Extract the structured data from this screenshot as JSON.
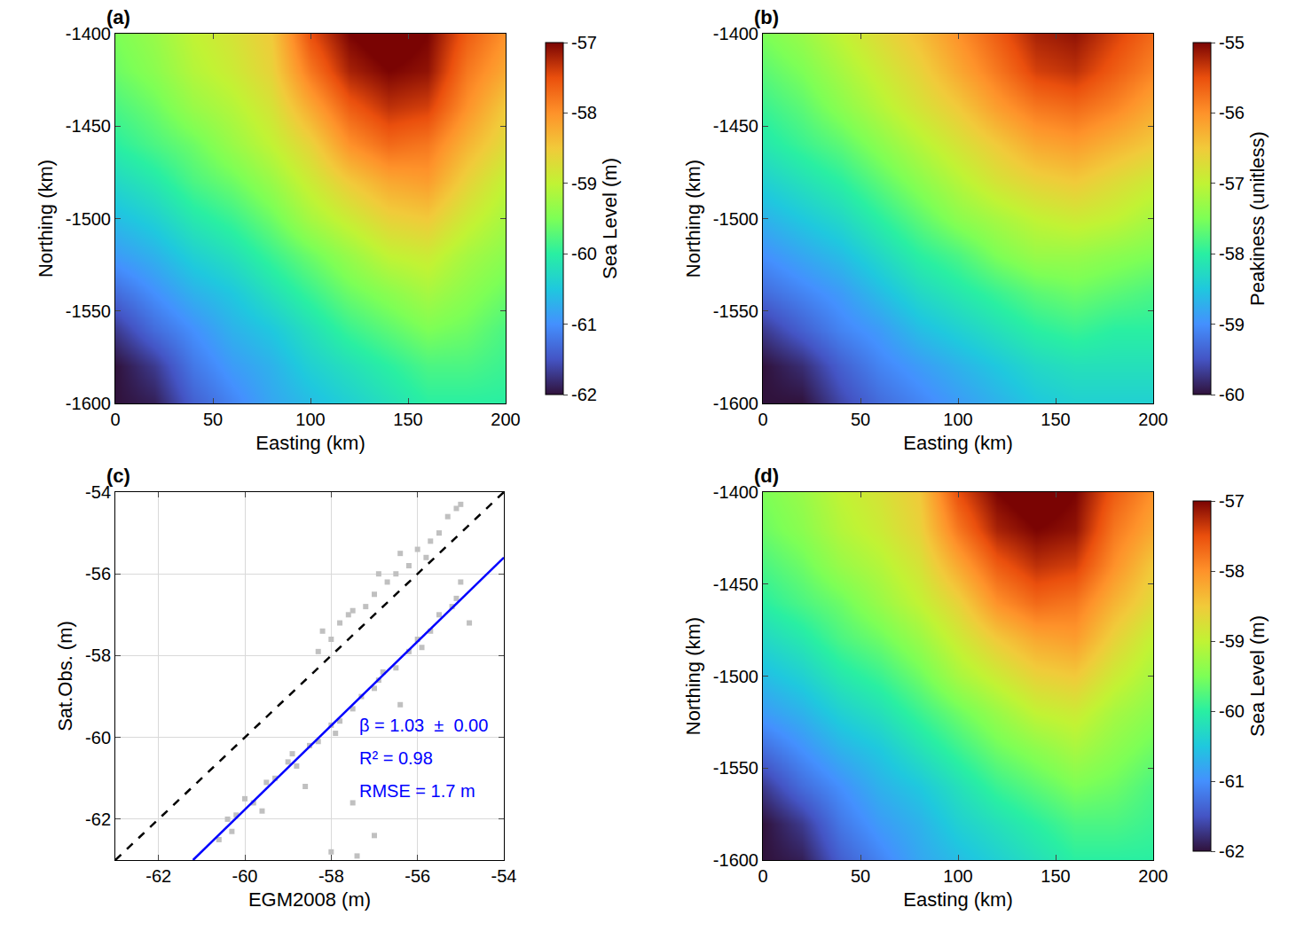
{
  "chart_data": [
    {
      "type": "heatmap",
      "label": "(a)",
      "xlabel": "Easting (km)",
      "ylabel": "Northing (km)",
      "xlim": [
        0,
        200
      ],
      "ylim": [
        -1600,
        -1400
      ],
      "xticks": [
        0,
        50,
        100,
        150,
        200
      ],
      "yticks": [
        -1600,
        -1550,
        -1500,
        -1450,
        -1400
      ],
      "grid": false,
      "x": [
        0,
        20,
        40,
        60,
        80,
        100,
        120,
        140,
        160,
        180,
        200
      ],
      "y": [
        -1600,
        -1580,
        -1560,
        -1540,
        -1520,
        -1500,
        -1480,
        -1460,
        -1440,
        -1420,
        -1400
      ],
      "z": [
        [
          -62,
          -61.9,
          -61.4,
          -61.1,
          -60.8,
          -60.6,
          -60.4,
          -60.2,
          -60,
          -60,
          -60
        ],
        [
          -62,
          -61.7,
          -61.2,
          -60.9,
          -60.7,
          -60.4,
          -60.2,
          -60,
          -59.8,
          -59.8,
          -59.9
        ],
        [
          -61.7,
          -61.3,
          -61,
          -60.7,
          -60.5,
          -60.2,
          -59.9,
          -59.7,
          -59.5,
          -59.6,
          -59.8
        ],
        [
          -61.3,
          -61,
          -60.7,
          -60.5,
          -60.2,
          -59.9,
          -59.6,
          -59.4,
          -59.2,
          -59.4,
          -59.6
        ],
        [
          -60.9,
          -60.7,
          -60.4,
          -60.2,
          -59.9,
          -59.6,
          -59.3,
          -59,
          -58.9,
          -59.2,
          -59.4
        ],
        [
          -60.6,
          -60.4,
          -60.1,
          -59.9,
          -59.6,
          -59.2,
          -58.9,
          -58.6,
          -58.5,
          -58.9,
          -59.2
        ],
        [
          -60.3,
          -60.1,
          -59.8,
          -59.6,
          -59.3,
          -58.9,
          -58.5,
          -58.2,
          -58.1,
          -58.6,
          -59
        ],
        [
          -60,
          -59.8,
          -59.6,
          -59.3,
          -59,
          -58.6,
          -58,
          -57.7,
          -57.8,
          -58.3,
          -58.7
        ],
        [
          -59.8,
          -59.6,
          -59.3,
          -59.1,
          -58.8,
          -58.2,
          -57.6,
          -57.3,
          -57.4,
          -58,
          -58.5
        ],
        [
          -59.6,
          -59.4,
          -59.1,
          -58.9,
          -58.6,
          -57.8,
          -57.2,
          -57,
          -57.1,
          -57.8,
          -58.2
        ],
        [
          -59.5,
          -59.3,
          -59,
          -58.8,
          -58.5,
          -57.5,
          -57,
          -56.8,
          -57,
          -57.6,
          -58
        ]
      ],
      "colorbar": {
        "title": "Sea Level (m)",
        "range": [
          -62,
          -57
        ],
        "ticks": [
          -62,
          -61,
          -60,
          -59,
          -58,
          -57
        ]
      }
    },
    {
      "type": "heatmap",
      "label": "(b)",
      "xlabel": "Easting (km)",
      "ylabel": "Northing (km)",
      "xlim": [
        0,
        200
      ],
      "ylim": [
        -1600,
        -1400
      ],
      "xticks": [
        0,
        50,
        100,
        150,
        200
      ],
      "yticks": [
        -1600,
        -1550,
        -1500,
        -1450,
        -1400
      ],
      "grid": false,
      "x": [
        0,
        20,
        40,
        60,
        80,
        100,
        120,
        140,
        160,
        180,
        200
      ],
      "y": [
        -1600,
        -1580,
        -1560,
        -1540,
        -1520,
        -1500,
        -1480,
        -1460,
        -1440,
        -1420,
        -1400
      ],
      "z": [
        [
          -60,
          -60,
          -59.6,
          -59.3,
          -59.1,
          -58.9,
          -58.7,
          -58.5,
          -58.4,
          -58.4,
          -58.4
        ],
        [
          -60,
          -59.8,
          -59.4,
          -59.1,
          -58.9,
          -58.7,
          -58.5,
          -58.3,
          -58.2,
          -58.2,
          -58.2
        ],
        [
          -59.7,
          -59.4,
          -59.1,
          -58.9,
          -58.6,
          -58.4,
          -58.2,
          -58,
          -57.9,
          -58,
          -58
        ],
        [
          -59.3,
          -59.1,
          -58.9,
          -58.6,
          -58.3,
          -58.1,
          -57.9,
          -57.7,
          -57.6,
          -57.7,
          -57.8
        ],
        [
          -59,
          -58.8,
          -58.6,
          -58.3,
          -58,
          -57.8,
          -57.5,
          -57.3,
          -57.3,
          -57.4,
          -57.5
        ],
        [
          -58.7,
          -58.5,
          -58.3,
          -58,
          -57.7,
          -57.4,
          -57.2,
          -57,
          -56.9,
          -57,
          -57.2
        ],
        [
          -58.4,
          -58.2,
          -58,
          -57.7,
          -57.4,
          -57.1,
          -56.8,
          -56.6,
          -56.5,
          -56.7,
          -56.9
        ],
        [
          -58.1,
          -57.9,
          -57.7,
          -57.4,
          -57.1,
          -56.8,
          -56.5,
          -56.2,
          -56.1,
          -56.3,
          -56.5
        ],
        [
          -57.9,
          -57.7,
          -57.4,
          -57.1,
          -56.8,
          -56.5,
          -56.1,
          -55.8,
          -55.7,
          -55.9,
          -56.2
        ],
        [
          -57.7,
          -57.5,
          -57.2,
          -56.9,
          -56.6,
          -56.2,
          -55.8,
          -55.4,
          -55.3,
          -55.6,
          -55.9
        ],
        [
          -57.5,
          -57.3,
          -57,
          -56.7,
          -56.4,
          -56,
          -55.6,
          -55.2,
          -55.1,
          -55.4,
          -55.7
        ]
      ],
      "colorbar": {
        "title": "Peakiness (unitless)",
        "range": [
          -60,
          -55
        ],
        "ticks": [
          -60,
          -59,
          -58,
          -57,
          -56,
          -55
        ]
      }
    },
    {
      "type": "scatter",
      "label": "(c)",
      "xlabel": "EGM2008 (m)",
      "ylabel": "Sat.Obs. (m)",
      "xlim": [
        -63,
        -54
      ],
      "ylim": [
        -63,
        -54
      ],
      "xticks": [
        -62,
        -60,
        -58,
        -56,
        -54
      ],
      "yticks": [
        -62,
        -60,
        -58,
        -56,
        -54
      ],
      "grid": true,
      "series": [
        {
          "type": "scatter",
          "marker": "square",
          "color": "#c0c0c0",
          "x": [
            -60.6,
            -60.4,
            -60.2,
            -60.0,
            -59.8,
            -59.5,
            -59.3,
            -59.0,
            -58.8,
            -58.5,
            -58.3,
            -58.0,
            -57.8,
            -57.5,
            -57.3,
            -57.0,
            -56.8,
            -56.5,
            -56.2,
            -56.0,
            -55.7,
            -55.5,
            -55.2,
            -55.0,
            -55.1,
            -60.3,
            -59.6,
            -58.9,
            -57.9,
            -56.9,
            -55.9,
            -57.5,
            -57.0,
            -57.4,
            -58.6,
            -56.4,
            -54.8,
            -58.0,
            -58.3,
            -58.2,
            -58.0,
            -57.8,
            -57.5,
            -57.2,
            -57.0,
            -56.7,
            -56.5,
            -56.2,
            -56.0,
            -55.7,
            -55.5,
            -55.3,
            -55.1,
            -55.0,
            -56.9,
            -57.6,
            -55.8,
            -56.4
          ],
          "values": [
            -62.5,
            -62.0,
            -61.9,
            -61.5,
            -61.6,
            -61.1,
            -61.0,
            -60.6,
            -60.7,
            -60.2,
            -60.1,
            -59.7,
            -59.6,
            -59.3,
            -59.0,
            -58.8,
            -58.4,
            -58.3,
            -57.9,
            -57.6,
            -57.4,
            -57.0,
            -56.8,
            -56.2,
            -56.6,
            -62.3,
            -61.8,
            -60.4,
            -59.9,
            -58.6,
            -57.8,
            -61.6,
            -62.4,
            -62.9,
            -61.2,
            -59.2,
            -57.2,
            -62.8,
            -57.9,
            -57.4,
            -57.6,
            -57.2,
            -56.9,
            -56.8,
            -56.5,
            -56.2,
            -56.0,
            -55.8,
            -55.4,
            -55.2,
            -55.0,
            -54.6,
            -54.4,
            -54.3,
            -56.0,
            -57.0,
            -55.6,
            -55.5
          ]
        },
        {
          "type": "line",
          "line_style": "dash",
          "color": "#000000",
          "x": [
            -63,
            -54
          ],
          "values": [
            -63,
            -54
          ]
        },
        {
          "type": "line",
          "line_style": "solid",
          "color": "#0000ff",
          "x": [
            -61.2,
            -54
          ],
          "values": [
            -63,
            -55.6
          ]
        }
      ],
      "annotations": [
        {
          "x": -57.4,
          "y": -59.7,
          "text": "β = 1.03  ±  0.00",
          "color": "#0000ff"
        },
        {
          "x": -57.4,
          "y": -60.5,
          "text": "R² = 0.98",
          "color": "#0000ff"
        },
        {
          "x": -57.4,
          "y": -61.3,
          "text": "RMSE = 1.7 m",
          "color": "#0000ff"
        }
      ]
    },
    {
      "type": "heatmap",
      "label": "(d)",
      "xlabel": "Easting (km)",
      "ylabel": "Northing (km)",
      "xlim": [
        0,
        200
      ],
      "ylim": [
        -1600,
        -1400
      ],
      "xticks": [
        0,
        50,
        100,
        150,
        200
      ],
      "yticks": [
        -1600,
        -1550,
        -1500,
        -1450,
        -1400
      ],
      "grid": false,
      "x": [
        0,
        20,
        40,
        60,
        80,
        100,
        120,
        140,
        160,
        180,
        200
      ],
      "y": [
        -1600,
        -1580,
        -1560,
        -1540,
        -1520,
        -1500,
        -1480,
        -1460,
        -1440,
        -1420,
        -1400
      ],
      "z": [
        [
          -62,
          -61.9,
          -61.4,
          -61.1,
          -60.8,
          -60.6,
          -60.4,
          -60.2,
          -60,
          -60,
          -60
        ],
        [
          -62,
          -61.7,
          -61.2,
          -60.9,
          -60.7,
          -60.4,
          -60.2,
          -60,
          -59.8,
          -59.8,
          -59.9
        ],
        [
          -61.7,
          -61.3,
          -61,
          -60.7,
          -60.5,
          -60.2,
          -59.9,
          -59.7,
          -59.5,
          -59.6,
          -59.8
        ],
        [
          -61.3,
          -61,
          -60.7,
          -60.5,
          -60.2,
          -59.9,
          -59.6,
          -59.4,
          -59.2,
          -59.4,
          -59.6
        ],
        [
          -60.9,
          -60.7,
          -60.4,
          -60.2,
          -59.9,
          -59.6,
          -59.3,
          -59,
          -58.9,
          -59.2,
          -59.4
        ],
        [
          -60.6,
          -60.4,
          -60.1,
          -59.9,
          -59.6,
          -59.2,
          -58.9,
          -58.6,
          -58.5,
          -58.9,
          -59.2
        ],
        [
          -60.3,
          -60.1,
          -59.8,
          -59.6,
          -59.3,
          -58.9,
          -58.5,
          -58.2,
          -58.1,
          -58.6,
          -59
        ],
        [
          -60,
          -59.8,
          -59.6,
          -59.3,
          -59,
          -58.6,
          -58,
          -57.7,
          -57.8,
          -58.3,
          -58.7
        ],
        [
          -59.8,
          -59.6,
          -59.3,
          -59.1,
          -58.8,
          -58.2,
          -57.6,
          -57.3,
          -57.4,
          -58,
          -58.5
        ],
        [
          -59.6,
          -59.4,
          -59.1,
          -58.9,
          -58.6,
          -57.8,
          -57.2,
          -57,
          -57.1,
          -57.8,
          -58.2
        ],
        [
          -59.5,
          -59.3,
          -59,
          -58.8,
          -58.5,
          -57.5,
          -57,
          -56.8,
          -57,
          -57.6,
          -58
        ]
      ],
      "colorbar": {
        "title": "Sea Level (m)",
        "range": [
          -62,
          -57
        ],
        "ticks": [
          -62,
          -61,
          -60,
          -59,
          -58,
          -57
        ]
      }
    }
  ]
}
